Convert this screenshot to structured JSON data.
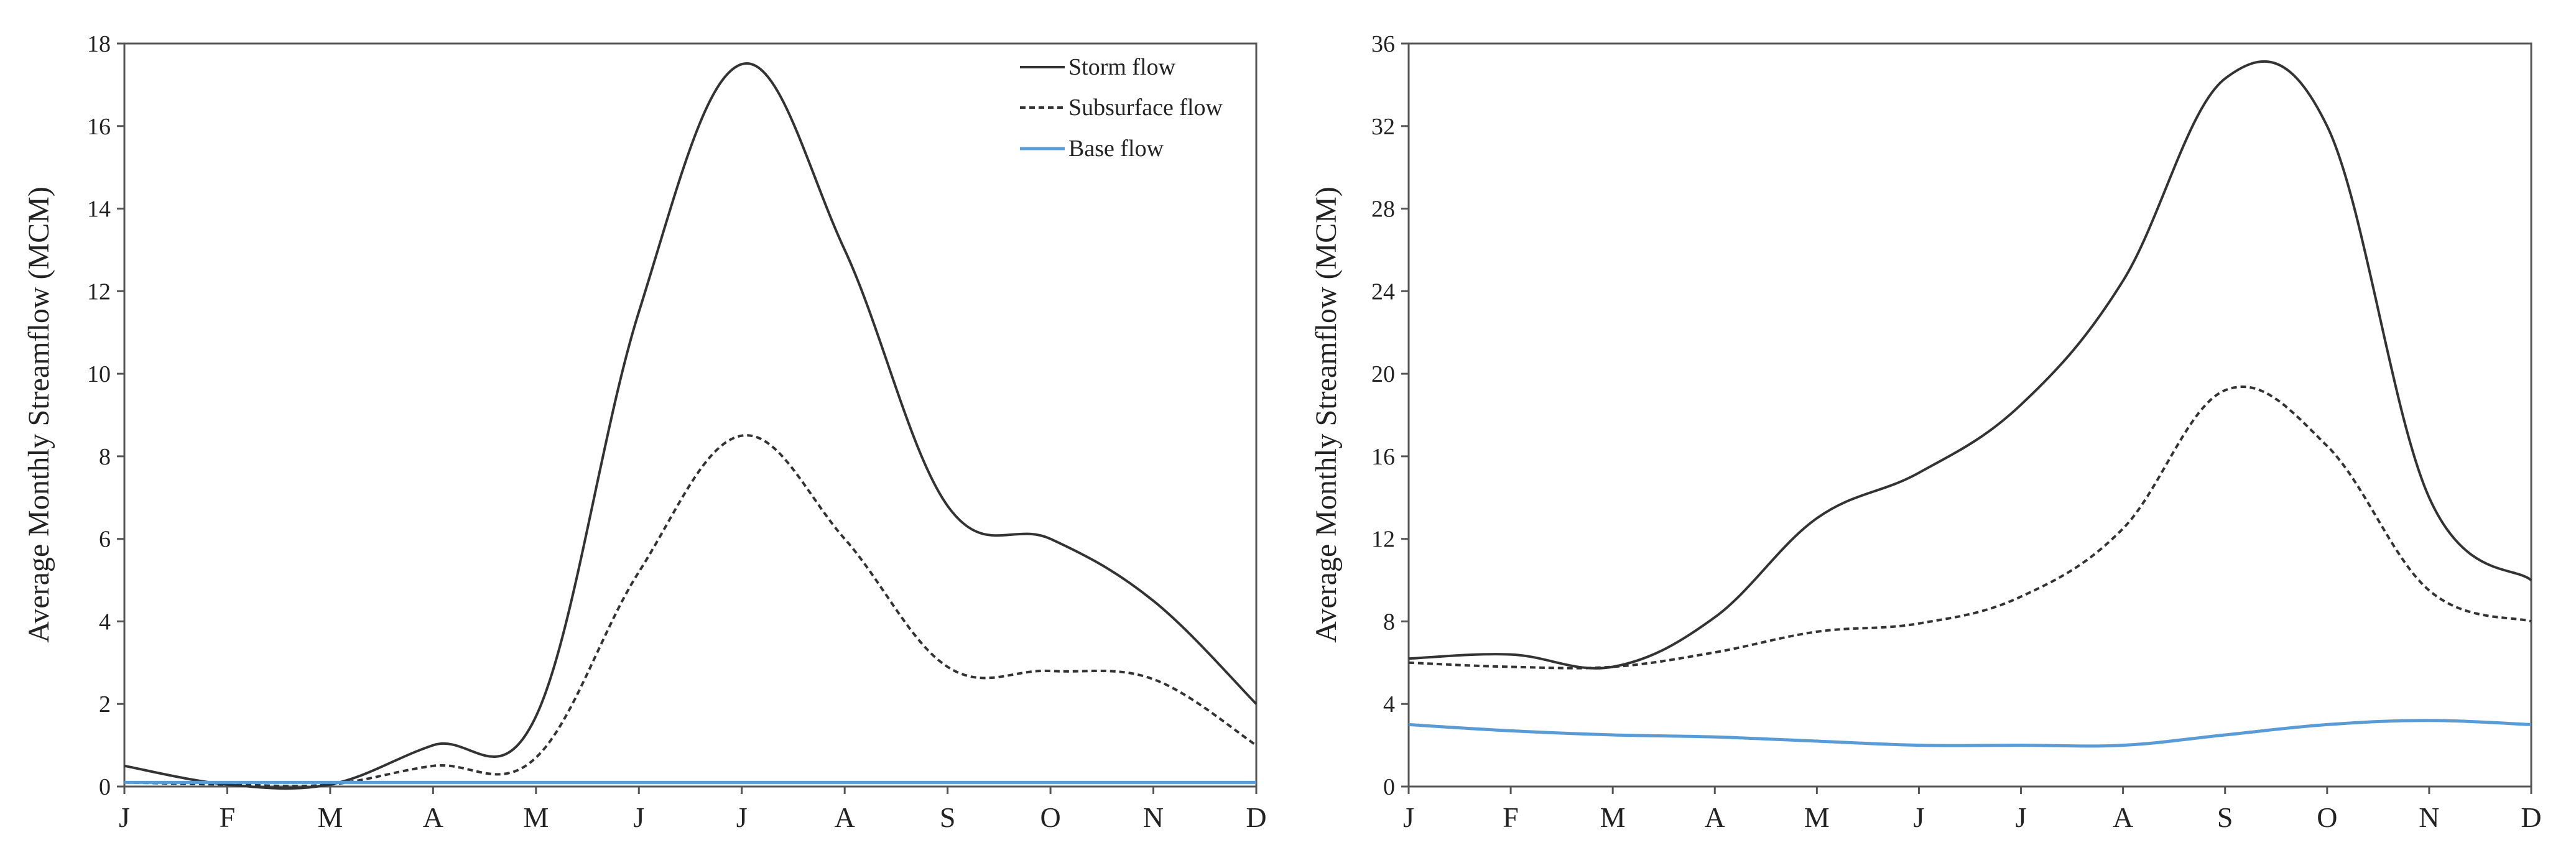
{
  "chart_data": [
    {
      "type": "line",
      "ylabel": "Average Monthly Streamflow (MCM)",
      "xlabel": "",
      "categories": [
        "J",
        "F",
        "M",
        "A",
        "M",
        "J",
        "J",
        "A",
        "S",
        "O",
        "N",
        "D"
      ],
      "ylim": [
        0,
        18
      ],
      "yticks": [
        0,
        2,
        4,
        6,
        8,
        10,
        12,
        14,
        16,
        18
      ],
      "legend_position": "top-right",
      "series": [
        {
          "name": "Storm flow",
          "color": "#333333",
          "dash": "solid",
          "values": [
            0.5,
            0.05,
            0.05,
            1.0,
            1.7,
            11.5,
            17.5,
            13.0,
            6.8,
            6.0,
            4.5,
            2.0
          ]
        },
        {
          "name": "Subsurface flow",
          "color": "#333333",
          "dash": "dashed",
          "values": [
            0.1,
            0.05,
            0.05,
            0.5,
            0.7,
            5.2,
            8.5,
            6.0,
            2.9,
            2.8,
            2.6,
            1.0
          ]
        },
        {
          "name": "Base flow",
          "color": "#5b9bd5",
          "dash": "solid",
          "values": [
            0.1,
            0.1,
            0.1,
            0.1,
            0.1,
            0.1,
            0.1,
            0.1,
            0.1,
            0.1,
            0.1,
            0.1
          ]
        }
      ]
    },
    {
      "type": "line",
      "ylabel": "Average Monthly Streamflow (MCM)",
      "xlabel": "",
      "categories": [
        "J",
        "F",
        "M",
        "A",
        "M",
        "J",
        "J",
        "A",
        "S",
        "O",
        "N",
        "D"
      ],
      "ylim": [
        0,
        36
      ],
      "yticks": [
        0,
        4,
        8,
        12,
        16,
        20,
        24,
        28,
        32,
        36
      ],
      "legend_position": "none",
      "series": [
        {
          "name": "Storm flow",
          "color": "#333333",
          "dash": "solid",
          "values": [
            6.2,
            6.4,
            5.8,
            8.2,
            13.0,
            15.2,
            18.5,
            24.5,
            34.3,
            32.0,
            14.0,
            10.0
          ]
        },
        {
          "name": "Subsurface flow",
          "color": "#333333",
          "dash": "dashed",
          "values": [
            6.0,
            5.8,
            5.8,
            6.5,
            7.5,
            7.9,
            9.2,
            12.5,
            19.2,
            16.5,
            9.5,
            8.0
          ]
        },
        {
          "name": "Base flow",
          "color": "#5b9bd5",
          "dash": "solid",
          "values": [
            3.0,
            2.7,
            2.5,
            2.4,
            2.2,
            2.0,
            2.0,
            2.0,
            2.5,
            3.0,
            3.2,
            3.0
          ]
        }
      ]
    }
  ]
}
